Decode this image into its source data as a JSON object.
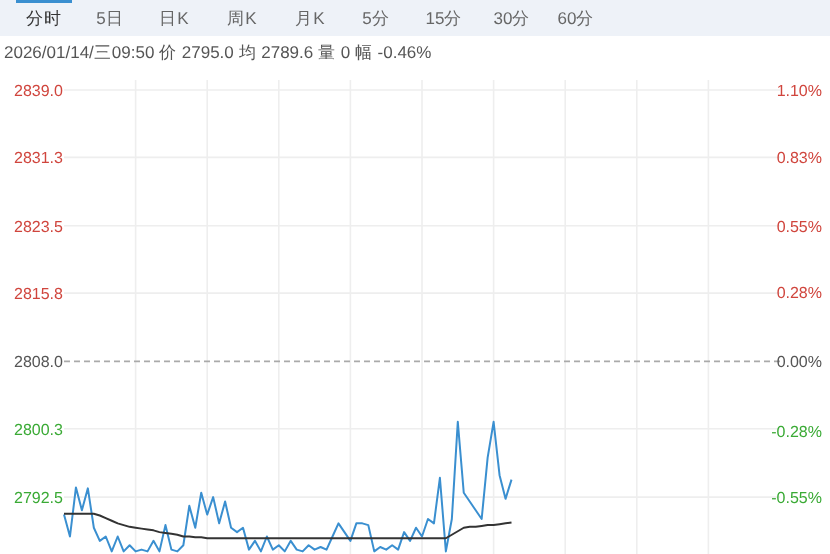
{
  "chart_data": {
    "type": "line",
    "title": "2026/01/14/三09:50  价 2795.0  均 2789.6  量 0  幅 -0.46%",
    "annotations": [
      "分时",
      "5日",
      "日K",
      "周K",
      "月K",
      "5分",
      "15分",
      "30分",
      "60分"
    ],
    "categories": [
      null,
      null,
      null,
      null,
      null,
      null,
      null,
      null,
      null,
      null,
      null,
      null,
      null,
      null,
      null,
      null,
      null,
      null,
      null,
      null,
      null,
      null,
      null,
      null,
      null,
      null,
      null,
      null,
      null,
      null,
      null,
      null,
      null,
      null,
      null,
      null,
      null,
      null,
      null,
      null,
      null,
      null,
      null,
      null,
      null,
      null,
      null,
      null,
      null,
      null,
      null,
      null,
      null,
      null,
      null,
      null,
      null,
      null,
      null,
      null,
      null,
      null,
      null,
      null,
      null,
      null,
      null,
      null,
      null,
      null,
      null,
      null,
      null,
      null,
      null,
      null,
      null,
      null,
      null,
      null,
      null,
      null,
      null,
      null,
      null,
      null,
      null,
      null,
      null,
      null,
      null,
      null,
      null,
      null,
      null,
      null,
      null,
      null,
      null,
      null,
      null,
      null,
      null,
      null,
      null,
      null,
      null,
      null,
      null,
      null,
      null,
      null,
      null,
      null,
      null,
      null,
      null,
      null,
      null,
      null,
      null
    ],
    "series": [
      {
        "color": "#3a8fd0",
        "values": [
          2790.5,
          2788.0,
          2793.6,
          2791.0,
          2793.5,
          2789.0,
          2787.5,
          2788.0,
          2786.3,
          2788.0,
          2786.3,
          2787.0,
          2786.3,
          2786.5,
          2786.3,
          2787.5,
          2786.3,
          2789.3,
          2786.5,
          2786.3,
          2787.0,
          2791.5,
          2789.0,
          2793.0,
          2790.5,
          2792.5,
          2789.5,
          2792.0,
          2789.0,
          2788.5,
          2789.0,
          2786.5,
          2787.5,
          2786.3,
          2788.0,
          2786.5,
          2787.0,
          2786.3,
          2787.5,
          2786.5,
          2786.3,
          2787.0,
          2786.5,
          2786.8,
          2786.5,
          2788.0,
          2789.5,
          2788.5,
          2787.5,
          2789.5,
          2789.5,
          2789.3,
          2786.3,
          2786.8,
          2786.5,
          2787.0,
          2786.5,
          2788.5,
          2787.5,
          2789.0,
          2788.0,
          2790.0,
          2789.5,
          2794.7,
          2786.3,
          2790.0,
          2801.1,
          2793.0,
          2792.0,
          2791.0,
          2790.0,
          2797.0,
          2801.1,
          2795.0,
          2792.3,
          2794.5,
          null,
          null,
          null,
          null,
          null,
          null,
          null,
          null,
          null,
          null,
          null,
          null,
          null,
          null,
          null,
          null,
          null,
          null,
          null,
          null,
          null,
          null,
          null,
          null,
          null,
          null,
          null,
          null,
          null,
          null,
          null,
          null,
          null,
          null,
          null,
          null,
          null,
          null,
          null,
          null,
          null,
          null,
          null,
          null,
          null
        ]
      },
      {
        "color": "#333333",
        "values": [
          2790.6,
          2790.6,
          2790.6,
          2790.6,
          2790.6,
          2790.6,
          2790.4,
          2790.1,
          2789.8,
          2789.5,
          2789.3,
          2789.1,
          2789.0,
          2788.9,
          2788.8,
          2788.7,
          2788.5,
          2788.4,
          2788.3,
          2788.2,
          2788.0,
          2788.0,
          2787.9,
          2787.9,
          2787.8,
          2787.8,
          2787.8,
          2787.8,
          2787.8,
          2787.8,
          2787.8,
          2787.8,
          2787.8,
          2787.8,
          2787.8,
          2787.8,
          2787.8,
          2787.8,
          2787.8,
          2787.8,
          2787.8,
          2787.8,
          2787.8,
          2787.8,
          2787.8,
          2787.8,
          2787.8,
          2787.8,
          2787.8,
          2787.8,
          2787.8,
          2787.8,
          2787.8,
          2787.8,
          2787.8,
          2787.8,
          2787.8,
          2787.8,
          2787.8,
          2787.8,
          2787.8,
          2787.8,
          2787.8,
          2787.8,
          2787.8,
          2788.2,
          2788.6,
          2789.0,
          2789.1,
          2789.1,
          2789.2,
          2789.3,
          2789.3,
          2789.4,
          2789.5,
          2789.6,
          null,
          null,
          null,
          null,
          null,
          null,
          null,
          null,
          null,
          null,
          null,
          null,
          null,
          null,
          null,
          null,
          null,
          null,
          null,
          null,
          null,
          null,
          null,
          null,
          null,
          null,
          null,
          null,
          null,
          null,
          null,
          null,
          null,
          null,
          null,
          null,
          null,
          null,
          null,
          null,
          null,
          null,
          null,
          null,
          null
        ]
      }
    ],
    "ylim": [
      2786.0,
      2839.0
    ],
    "yticks": [
      {
        "value": 2839.0,
        "label": "2839.0"
      },
      {
        "value": 2831.3,
        "label": "2831.3"
      },
      {
        "value": 2823.5,
        "label": "2823.5"
      },
      {
        "value": 2815.8,
        "label": "2815.8"
      },
      {
        "value": 2808.0,
        "label": "2808.0"
      },
      {
        "value": 2800.3,
        "label": "2800.3"
      },
      {
        "value": 2792.5,
        "label": "2792.5"
      }
    ],
    "y2lim": [
      -0.78,
      1.1
    ],
    "y2ticks": [
      {
        "value": 1.1,
        "label": "1.10%"
      },
      {
        "value": 0.83,
        "label": "0.83%"
      },
      {
        "value": 0.55,
        "label": "0.55%"
      },
      {
        "value": 0.28,
        "label": "0.28%"
      },
      {
        "value": 0.0,
        "label": "0.00%"
      },
      {
        "value": -0.28,
        "label": "-0.28%"
      },
      {
        "value": -0.55,
        "label": "-0.55%"
      }
    ],
    "ref_lines": [
      {
        "axis": "y",
        "value": 2808.0,
        "color": "#aaaaaa",
        "line_style": "dashed"
      }
    ],
    "grid": true,
    "tick_labels": "y"
  }
}
